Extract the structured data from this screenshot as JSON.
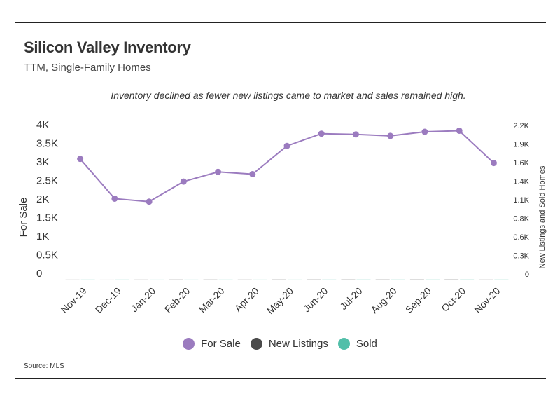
{
  "header": {
    "title": "Silicon Valley Inventory",
    "subtitle": "TTM, Single-Family Homes"
  },
  "annotation": "Inventory declined as fewer new listings came to market and sales remained high.",
  "source": "Source:  MLS",
  "colors": {
    "for_sale": "#9b7bbf",
    "new_listings": "#4a4a4a",
    "sold": "#52bfa9"
  },
  "legend": [
    {
      "label": "For Sale",
      "color": "#9b7bbf"
    },
    {
      "label": "New Listings",
      "color": "#4a4a4a"
    },
    {
      "label": "Sold",
      "color": "#52bfa9"
    }
  ],
  "chart_data": {
    "type": "bar",
    "categories": [
      "Nov-19",
      "Dec-19",
      "Jan-20",
      "Feb-20",
      "Mar-20",
      "Apr-20",
      "May-20",
      "Jun-20",
      "Jul-20",
      "Aug-20",
      "Sep-20",
      "Oct-20",
      "Nov-20"
    ],
    "series": [
      {
        "name": "New Listings",
        "type": "bar",
        "axis": "right",
        "values": [
          0.73,
          0.33,
          1.0,
          1.47,
          1.4,
          1.14,
          1.66,
          1.76,
          1.84,
          1.81,
          1.97,
          2.07,
          1.12
        ]
      },
      {
        "name": "Sold",
        "type": "bar",
        "axis": "right",
        "values": [
          1.16,
          1.11,
          0.67,
          0.78,
          0.99,
          0.83,
          0.8,
          1.36,
          1.64,
          1.46,
          1.57,
          1.74,
          1.54
        ]
      },
      {
        "name": "For Sale",
        "type": "line",
        "axis": "left",
        "values": [
          3250,
          2180,
          2100,
          2640,
          2900,
          2840,
          3600,
          3930,
          3910,
          3870,
          3980,
          4010,
          3140
        ]
      }
    ],
    "ylabel": "For Sale",
    "y2label": "New Listings and Sold Homes",
    "ylim": [
      0,
      4000
    ],
    "y2lim": [
      0,
      2200
    ],
    "yticks": [
      "0",
      "0.5K",
      "1K",
      "1.5K",
      "2K",
      "2.5K",
      "3K",
      "3.5K",
      "4K"
    ],
    "y2ticks": [
      "0",
      "0.3K",
      "0.6K",
      "0.8K",
      "1.1K",
      "1.4K",
      "1.6K",
      "1.9K",
      "2.2K"
    ],
    "grid": false,
    "legend_position": "bottom"
  }
}
